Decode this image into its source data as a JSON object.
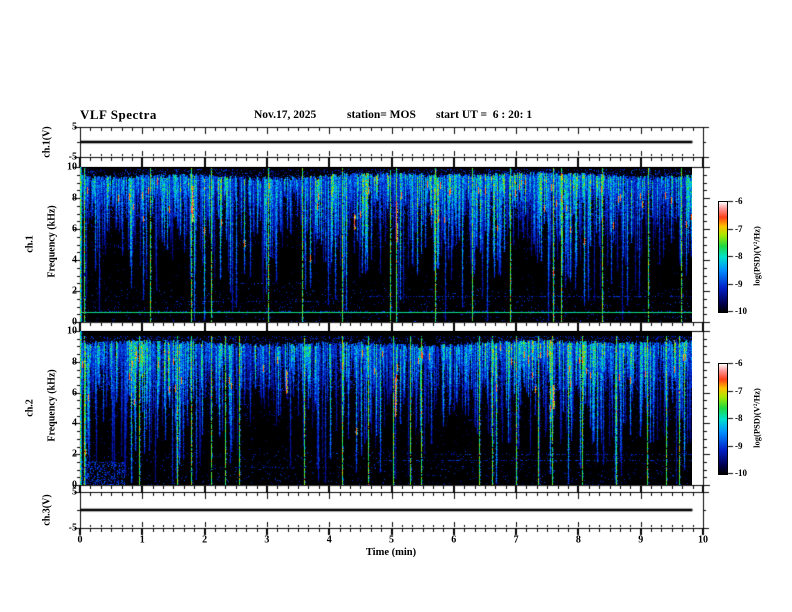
{
  "figure": {
    "title": "VLF Spectra",
    "date": "Nov.17, 2025",
    "station": "station= MOS",
    "start_ut": "start UT =  6 : 20: 1"
  },
  "x_axis": {
    "label": "Time (min)",
    "tick_labels": [
      "0",
      "1",
      "2",
      "3",
      "4",
      "5",
      "6",
      "7",
      "8",
      "9",
      "10"
    ],
    "range_min": [
      0,
      10
    ],
    "minors_per_major": 6,
    "data_end_min": 9.83
  },
  "colorbar": {
    "label": "log(PSD)(V²/Hz)",
    "tick_labels": [
      "-6",
      "-7",
      "-8",
      "-9",
      "-10"
    ],
    "range_log_psd": [
      -6,
      -10
    ]
  },
  "colormap": {
    "stops": [
      [
        0.0,
        "#000000"
      ],
      [
        0.08,
        "#000050"
      ],
      [
        0.22,
        "#0020c8"
      ],
      [
        0.38,
        "#0090ff"
      ],
      [
        0.5,
        "#00e0cc"
      ],
      [
        0.6,
        "#20d840"
      ],
      [
        0.7,
        "#a8e800"
      ],
      [
        0.78,
        "#ffc000"
      ],
      [
        0.86,
        "#ff4018"
      ],
      [
        0.94,
        "#ff9898"
      ],
      [
        1.0,
        "#ffffff"
      ]
    ]
  },
  "chart_data": [
    {
      "type": "line",
      "panel": "ch1-voltage-strip",
      "ylabel": "ch.1(V)",
      "ytick_labels": [
        "5",
        "-5"
      ],
      "y_range": [
        -5,
        5
      ],
      "x_min": [
        0,
        9.83
      ],
      "y_values": [
        0,
        0
      ]
    },
    {
      "type": "heatmap",
      "panel": "ch1-spectrogram",
      "ylabel_lines": [
        "ch.1",
        "Frequency (kHz)"
      ],
      "ytick_labels": [
        "10",
        "8",
        "6",
        "4",
        "2",
        "0"
      ],
      "y_range_khz": [
        0,
        10
      ],
      "z_range_log_psd": [
        -10,
        -6
      ],
      "seed": 1711,
      "band_top_khz": 9.75,
      "band_low_khz": 6.8,
      "streak_prob": 0.96,
      "fog_prob": 0.34,
      "vertical_lines_min": [
        0.07,
        1.12,
        1.78,
        2.1,
        3.02,
        3.56,
        4.2,
        4.97,
        5.07,
        5.7,
        6.3,
        6.9,
        7.6,
        7.72,
        8.38,
        9.12,
        9.65
      ],
      "horizontal_line_khz": 0.62,
      "dotted_lines": [
        {
          "khz": 1.7,
          "from_min": 4.6,
          "to_min": 9.83,
          "density": 0.45
        },
        {
          "khz": 1.35,
          "from_min": 1.5,
          "to_min": 4.2,
          "density": 0.3
        },
        {
          "khz": 2.5,
          "from_min": 2.2,
          "to_min": 3.6,
          "density": 0.22
        }
      ],
      "red_spots": [
        {
          "min": 1.8,
          "khz": [
            6.5,
            8.8
          ]
        },
        {
          "min": 5.07,
          "khz": [
            5.2,
            7.8
          ]
        },
        {
          "min": 4.4,
          "khz": [
            6.0,
            7.0
          ]
        }
      ],
      "left_edge_bright": true,
      "bottom_left_cluster": false
    },
    {
      "type": "heatmap",
      "panel": "ch2-spectrogram",
      "ylabel_lines": [
        "ch.2",
        "Frequency (kHz)"
      ],
      "ytick_labels": [
        "10",
        "8",
        "6",
        "4",
        "2",
        "0"
      ],
      "y_range_khz": [
        0,
        10
      ],
      "z_range_log_psd": [
        -10,
        -6
      ],
      "seed": 4242,
      "band_top_khz": 9.5,
      "band_low_khz": 6.2,
      "streak_prob": 0.93,
      "fog_prob": 0.3,
      "vertical_lines_min": [
        0.07,
        0.95,
        1.55,
        1.78,
        2.1,
        2.32,
        2.55,
        3.6,
        4.2,
        4.62,
        5.02,
        5.3,
        5.48,
        6.4,
        6.62,
        7.0,
        7.35,
        7.58,
        8.05,
        8.6,
        9.1,
        9.4,
        9.62
      ],
      "horizontal_line_khz": null,
      "dotted_lines": [
        {
          "khz": 1.6,
          "from_min": 4.8,
          "to_min": 9.83,
          "density": 0.4
        },
        {
          "khz": 2.0,
          "from_min": 5.7,
          "to_min": 9.83,
          "density": 0.28
        },
        {
          "khz": 1.2,
          "from_min": 2.4,
          "to_min": 4.8,
          "density": 0.22
        }
      ],
      "red_spots": [
        {
          "min": 5.05,
          "khz": [
            4.5,
            7.0
          ]
        },
        {
          "min": 3.3,
          "khz": [
            6.0,
            7.5
          ]
        },
        {
          "min": 7.6,
          "khz": [
            5.0,
            6.5
          ]
        }
      ],
      "left_edge_bright": true,
      "bottom_left_cluster": true
    },
    {
      "type": "line",
      "panel": "ch3-voltage-strip",
      "ylabel": "ch.3(V)",
      "ytick_labels": [
        "5",
        "-5"
      ],
      "y_range": [
        -5,
        5
      ],
      "x_min": [
        0,
        9.83
      ],
      "y_values": [
        0,
        0
      ]
    }
  ]
}
